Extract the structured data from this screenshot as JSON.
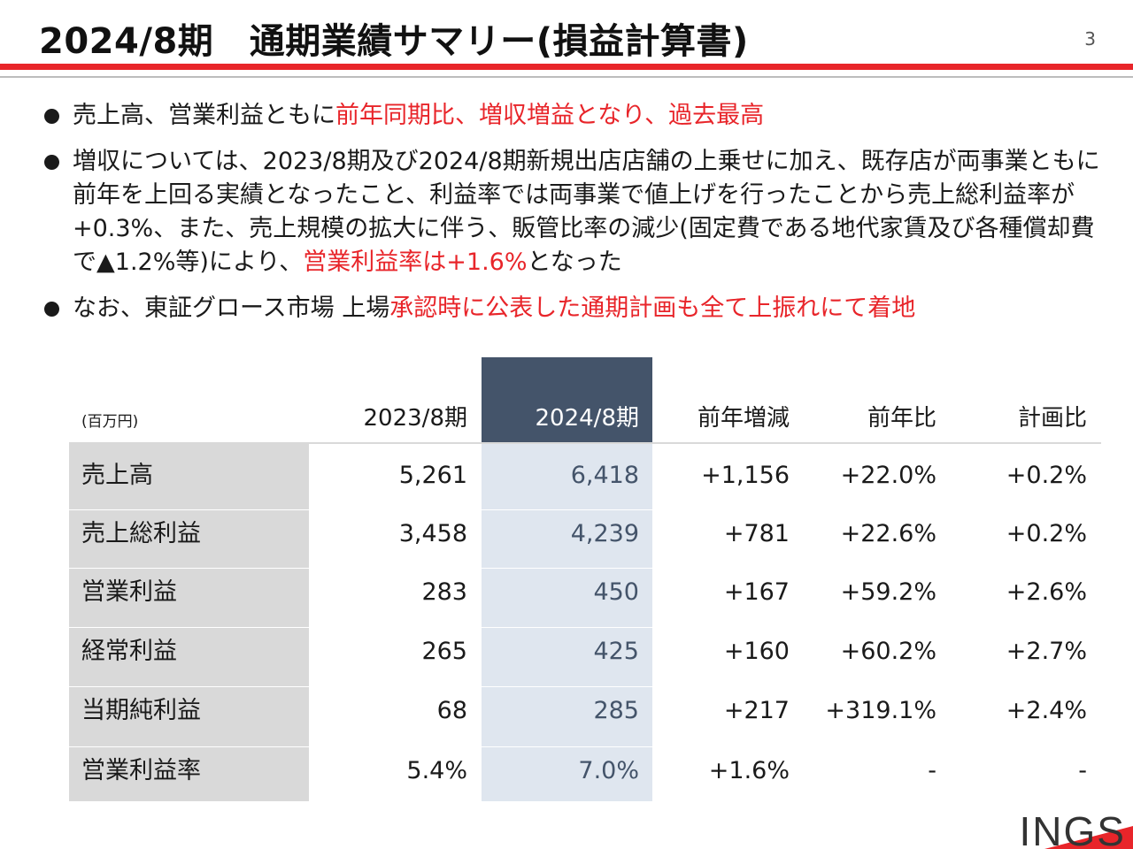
{
  "header": {
    "title": "2024/8期　通期業績サマリー(損益計算書)",
    "page_number": "3"
  },
  "bullets": [
    {
      "segments": [
        {
          "text": "売上高、営業利益ともに",
          "highlight": false
        },
        {
          "text": "前年同期比、増収増益となり、過去最高",
          "highlight": true
        }
      ]
    },
    {
      "segments": [
        {
          "text": "増収については、2023/8期及び2024/8期新規出店店舗の上乗せに加え、既存店が両事業ともに前年を上回る実績となったこと、利益率では両事業で値上げを行ったことから売上総利益率が+0.3%、また、売上規模の拡大に伴う、販管比率の減少(固定費である地代家賃及び各種償却費で▲1.2%等)により、",
          "highlight": false
        },
        {
          "text": "営業利益率は+1.6%",
          "highlight": true
        },
        {
          "text": "となった",
          "highlight": false
        }
      ]
    },
    {
      "segments": [
        {
          "text": "なお、東証グロース市場 上場",
          "highlight": false
        },
        {
          "text": "承認時に公表した通期計画も全て上振れにて着地",
          "highlight": true
        }
      ]
    }
  ],
  "table": {
    "unit": "(百万円)",
    "columns": [
      "2023/8期",
      "2024/8期",
      "前年増減",
      "前年比",
      "計画比"
    ],
    "rows": [
      {
        "label": "売上高",
        "values": [
          "5,261",
          "6,418",
          "+1,156",
          "+22.0%",
          "+0.2%"
        ]
      },
      {
        "label": "売上総利益",
        "values": [
          "3,458",
          "4,239",
          "+781",
          "+22.6%",
          "+0.2%"
        ]
      },
      {
        "label": "営業利益",
        "values": [
          "283",
          "450",
          "+167",
          "+59.2%",
          "+2.6%"
        ]
      },
      {
        "label": "経常利益",
        "values": [
          "265",
          "425",
          "+160",
          "+60.2%",
          "+2.7%"
        ]
      },
      {
        "label": "当期純利益",
        "values": [
          "68",
          "285",
          "+217",
          "+319.1%",
          "+2.4%"
        ]
      },
      {
        "label": "営業利益率",
        "values": [
          "5.4%",
          "7.0%",
          "+1.6%",
          "-",
          "-"
        ]
      }
    ]
  },
  "logo": {
    "text": "INGS",
    "accent_color": "#e8252a"
  },
  "colors": {
    "accent_red": "#e8252a",
    "header_navy": "#44546a",
    "highlight_column": "#dfe6ef",
    "label_gray": "#d9d9d9"
  }
}
